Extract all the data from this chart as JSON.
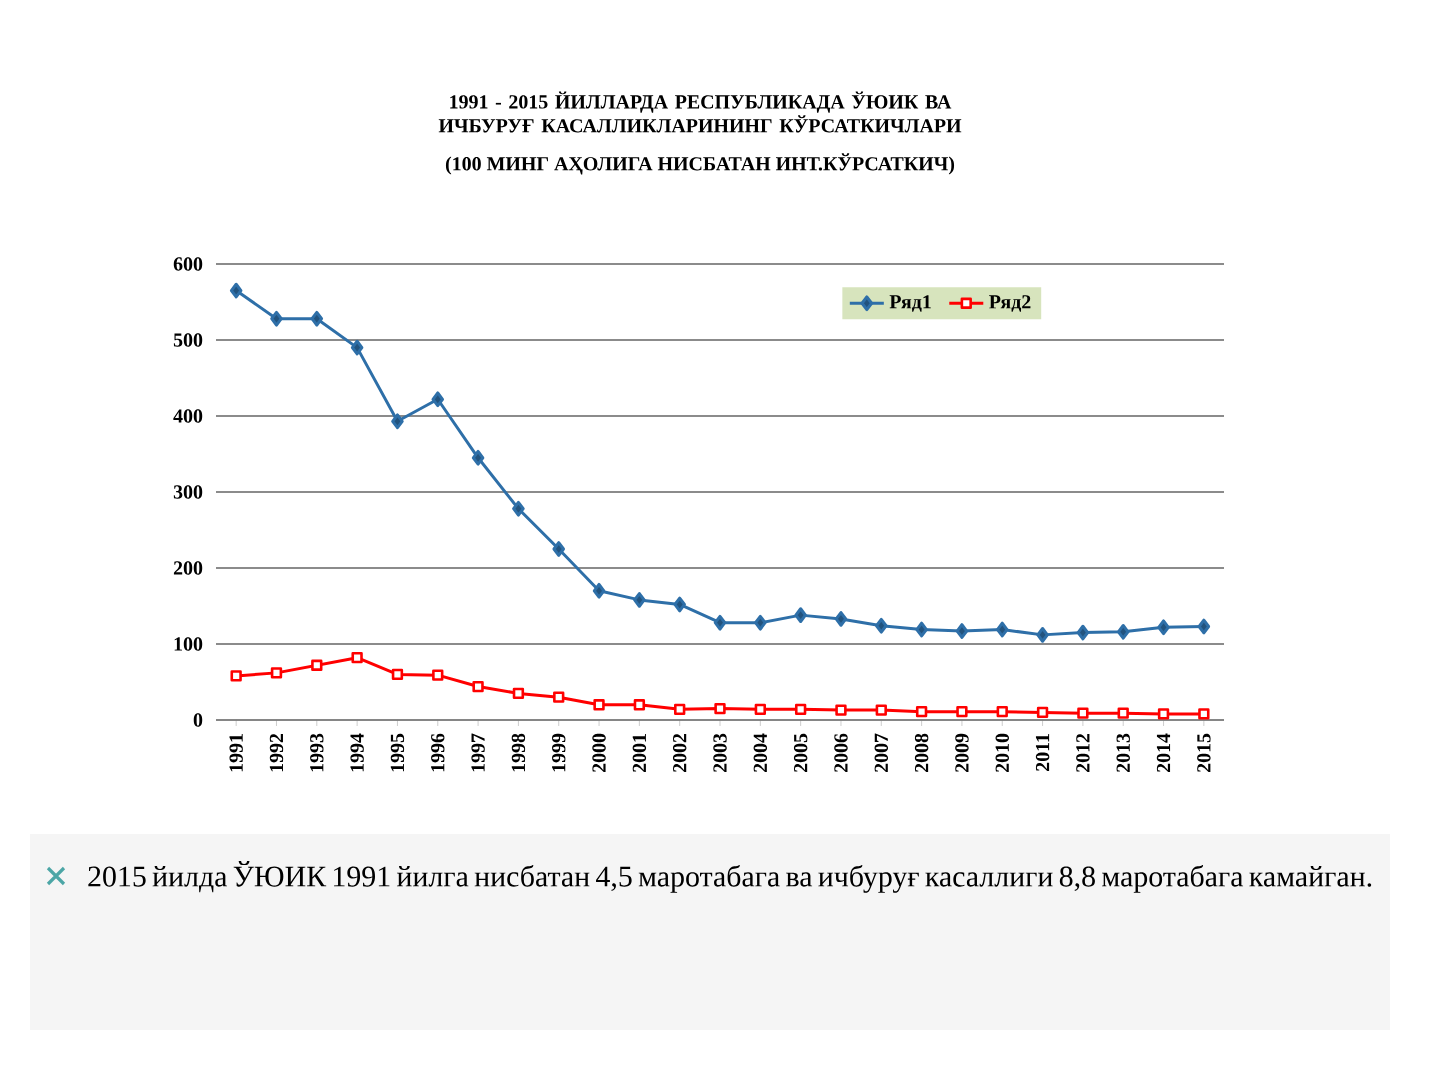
{
  "chart_data": {
    "type": "line",
    "title": "1991 - 2015 ЙИЛЛАРДА РЕСПУБЛИКАДА ЎЮИК ВА ИЧБУРУҒ КАСАЛЛИКЛАРИНИНГ КЎРСАТКИЧЛАРИ",
    "subtitle": "(100 МИНГ АҲОЛИГА НИСБАТАН ИНТ.КЎРСАТКИЧ)",
    "categories": [
      "1991",
      "1992",
      "1993",
      "1994",
      "1995",
      "1996",
      "1997",
      "1998",
      "1999",
      "2000",
      "2001",
      "2002",
      "2003",
      "2004",
      "2005",
      "2006",
      "2007",
      "2008",
      "2009",
      "2010",
      "2011",
      "2012",
      "2013",
      "2014",
      "2015"
    ],
    "series": [
      {
        "name": "Ряд1",
        "color": "#2e6fa8",
        "marker": "diamond",
        "values": [
          565,
          528,
          528,
          490,
          393,
          422,
          345,
          278,
          225,
          170,
          158,
          152,
          128,
          128,
          138,
          133,
          124,
          119,
          117,
          119,
          112,
          115,
          116,
          122,
          123
        ]
      },
      {
        "name": "Ряд2",
        "color": "#ff0000",
        "marker": "square",
        "values": [
          58,
          62,
          72,
          82,
          60,
          59,
          44,
          35,
          30,
          20,
          20,
          14,
          15,
          14,
          14,
          13,
          13,
          11,
          11,
          11,
          10,
          9,
          9,
          8,
          8
        ]
      }
    ],
    "ylim": [
      0,
      600
    ],
    "yticks": [
      0,
      100,
      200,
      300,
      400,
      500,
      600
    ],
    "grid": "y",
    "legend": "top right",
    "line_style": "solid",
    "annotations": [
      "2015 йилда ЎЮИК 1991 йилга нисбатан 4,5 маротабага ва ичбуруғ касаллиги 8,8 маротабага камайган."
    ]
  }
}
